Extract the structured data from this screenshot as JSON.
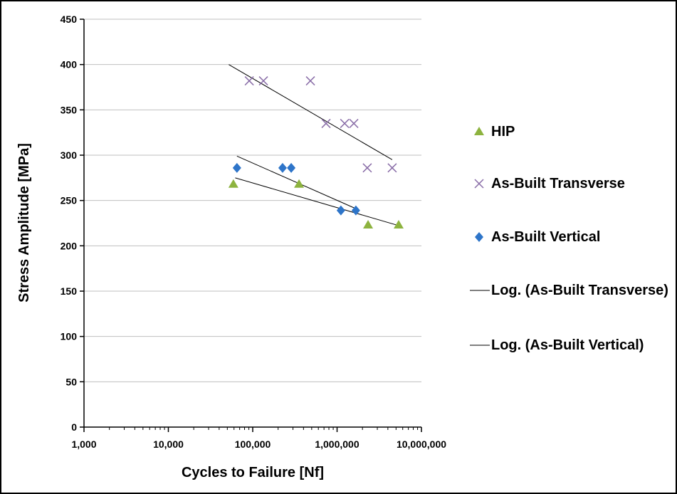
{
  "chart_data": {
    "type": "scatter",
    "x_label": "Cycles to Failure [Nf]",
    "y_label": "Stress Amplitude [MPa]",
    "xscale": "log",
    "xlim": [
      1000,
      10000000
    ],
    "xticks": [
      {
        "value": 1000,
        "label": "1,000"
      },
      {
        "value": 10000,
        "label": "10,000"
      },
      {
        "value": 100000,
        "label": "100,000"
      },
      {
        "value": 1000000,
        "label": "1,000,000"
      },
      {
        "value": 10000000,
        "label": "10,000,000"
      }
    ],
    "ylim": [
      0,
      450
    ],
    "yticks": [
      0,
      50,
      100,
      150,
      200,
      250,
      300,
      350,
      400,
      450
    ],
    "grid": true,
    "series": [
      {
        "name": "HIP",
        "color": "#8db33f",
        "marker": "triangle",
        "x": [
          59000,
          354000,
          2330000,
          5370000
        ],
        "values": [
          268,
          268,
          223,
          223
        ]
      },
      {
        "name": "As-Built Transverse",
        "color": "#8a6ea8",
        "marker": "x",
        "x": [
          91000,
          134000,
          483000,
          740000,
          1230000,
          1580000,
          2280000,
          4500000
        ],
        "values": [
          382,
          382,
          382,
          335,
          335,
          335,
          286,
          286
        ]
      },
      {
        "name": "As-Built Vertical",
        "color": "#2e75c9",
        "marker": "diamond",
        "x": [
          65000,
          226000,
          286000,
          1110000,
          1670000
        ],
        "values": [
          286,
          286,
          286,
          239,
          239
        ]
      }
    ],
    "trendlines": [
      {
        "name": "Log. (As-Built Transverse)",
        "color": "#000000",
        "x": [
          52000,
          4500000
        ],
        "values": [
          400,
          295
        ]
      },
      {
        "name": "Log. (As-Built Vertical)",
        "color": "#000000",
        "x": [
          65000,
          1670000
        ],
        "values": [
          299,
          241
        ]
      },
      {
        "color": "#000000",
        "x": [
          62000,
          5500000
        ],
        "values": [
          275,
          222
        ]
      }
    ]
  }
}
